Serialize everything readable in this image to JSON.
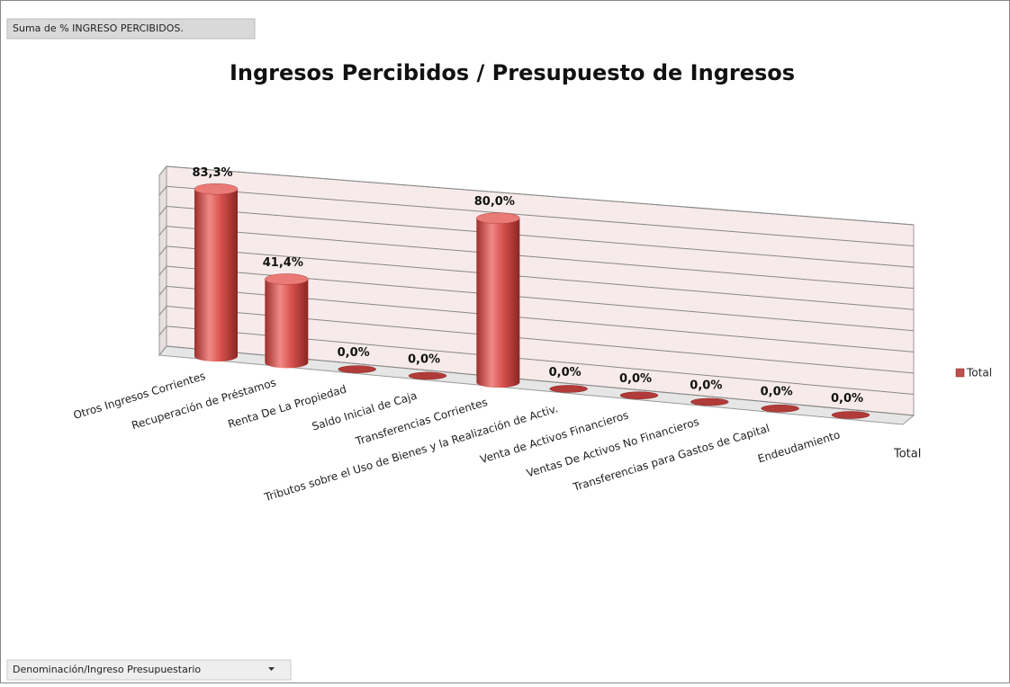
{
  "chart_data": {
    "type": "bar",
    "field_button": "Suma de % INGRESO PERCIBIDOS.",
    "row_field_button": "Denominación/Ingreso Presupuestario",
    "title": "Ingresos Percibidos / Presupuesto de Ingresos",
    "categories": [
      "Otros Ingresos Corrientes",
      "Recuperación de Préstamos",
      "Renta De La Propiedad",
      "Saldo Inicial de Caja",
      "Transferencias Corrientes",
      "Tributos sobre el Uso de Bienes y la Realización de Activ.",
      "Venta de Activos Financieros",
      "Ventas De Activos No Financieros",
      "Transferencias para Gastos de Capital",
      "Endeudamiento"
    ],
    "series": [
      {
        "name": "Total",
        "color": "#c0504d",
        "values": [
          83.3,
          41.4,
          0,
          0,
          80,
          0,
          0,
          0,
          0,
          0
        ],
        "value_labels": [
          "83,3%",
          "41,4%",
          "0,0%",
          "0,0%",
          "80,0%",
          "0,0%",
          "0,0%",
          "0,0%",
          "0,0%",
          "0,0%"
        ]
      }
    ],
    "depth_axis_label": "Total",
    "ylim": [
      0,
      90
    ],
    "yticks": [
      0,
      10,
      20,
      30,
      40,
      50,
      60,
      70,
      80,
      90
    ],
    "grid": true,
    "legend": "right"
  }
}
